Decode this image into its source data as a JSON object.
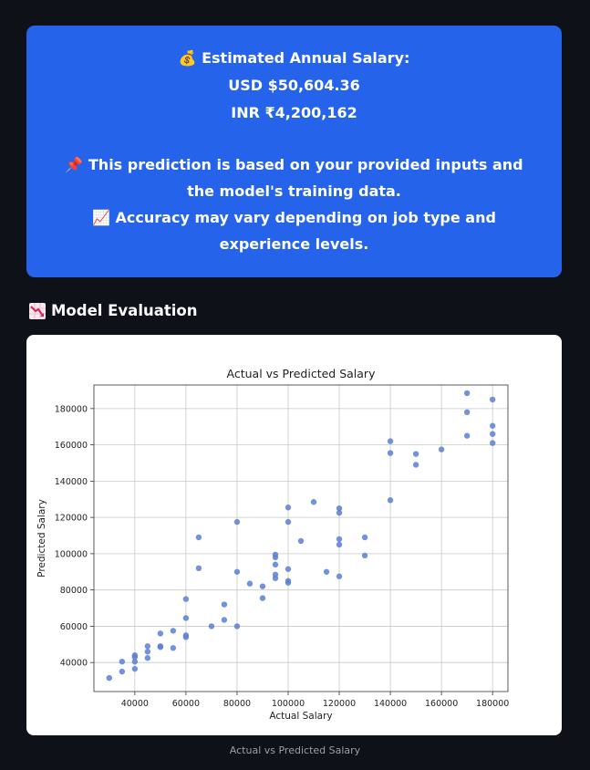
{
  "prediction": {
    "title": "💰 Estimated Annual Salary:",
    "usd": "USD $50,604.36",
    "inr": "INR ₹4,200,162",
    "note_basis": "📌 This prediction is based on your provided inputs and the model's training data.",
    "note_accuracy": "📈 Accuracy may vary depending on job type and experience levels."
  },
  "section": {
    "title": "Model Evaluation",
    "icon": "chart-decreasing-icon"
  },
  "caption": "Actual vs Predicted Salary",
  "colors": {
    "card_bg": "#2563eb",
    "page_bg": "#0e1117",
    "point": "#5b7fd6"
  },
  "chart_data": {
    "type": "scatter",
    "title": "Actual vs Predicted Salary",
    "xlabel": "Actual Salary",
    "ylabel": "Predicted Salary",
    "xlim": [
      24000,
      186000
    ],
    "ylim": [
      24000,
      193000
    ],
    "xticks": [
      40000,
      60000,
      80000,
      100000,
      120000,
      140000,
      160000,
      180000
    ],
    "yticks": [
      40000,
      60000,
      80000,
      100000,
      120000,
      140000,
      160000,
      180000
    ],
    "grid": true,
    "points": [
      [
        30000,
        31500
      ],
      [
        35000,
        35000
      ],
      [
        35000,
        40500
      ],
      [
        40000,
        36500
      ],
      [
        40000,
        40500
      ],
      [
        40000,
        43000
      ],
      [
        40000,
        44000
      ],
      [
        45000,
        42500
      ],
      [
        45000,
        46000
      ],
      [
        45000,
        49000
      ],
      [
        50000,
        48500
      ],
      [
        50000,
        49000
      ],
      [
        50000,
        56000
      ],
      [
        55000,
        48000
      ],
      [
        55000,
        57500
      ],
      [
        60000,
        54000
      ],
      [
        60000,
        55000
      ],
      [
        60000,
        64500
      ],
      [
        60000,
        75000
      ],
      [
        65000,
        92000
      ],
      [
        65000,
        109000
      ],
      [
        70000,
        60000
      ],
      [
        75000,
        63500
      ],
      [
        75000,
        72000
      ],
      [
        80000,
        60000
      ],
      [
        80000,
        90000
      ],
      [
        80000,
        117500
      ],
      [
        85000,
        83500
      ],
      [
        90000,
        75500
      ],
      [
        90000,
        82000
      ],
      [
        95000,
        86500
      ],
      [
        95000,
        88500
      ],
      [
        95000,
        94000
      ],
      [
        95000,
        98000
      ],
      [
        95000,
        99500
      ],
      [
        100000,
        84000
      ],
      [
        100000,
        85000
      ],
      [
        100000,
        91500
      ],
      [
        100000,
        117500
      ],
      [
        100000,
        125500
      ],
      [
        105000,
        107000
      ],
      [
        110000,
        128500
      ],
      [
        115000,
        90000
      ],
      [
        120000,
        87500
      ],
      [
        120000,
        105000
      ],
      [
        120000,
        108000
      ],
      [
        120000,
        122500
      ],
      [
        120000,
        125000
      ],
      [
        130000,
        99000
      ],
      [
        130000,
        109000
      ],
      [
        140000,
        129500
      ],
      [
        140000,
        155500
      ],
      [
        140000,
        162000
      ],
      [
        150000,
        149000
      ],
      [
        150000,
        155000
      ],
      [
        160000,
        157500
      ],
      [
        170000,
        165000
      ],
      [
        170000,
        178000
      ],
      [
        170000,
        188500
      ],
      [
        180000,
        161000
      ],
      [
        180000,
        166000
      ],
      [
        180000,
        170500
      ],
      [
        180000,
        185000
      ]
    ]
  }
}
